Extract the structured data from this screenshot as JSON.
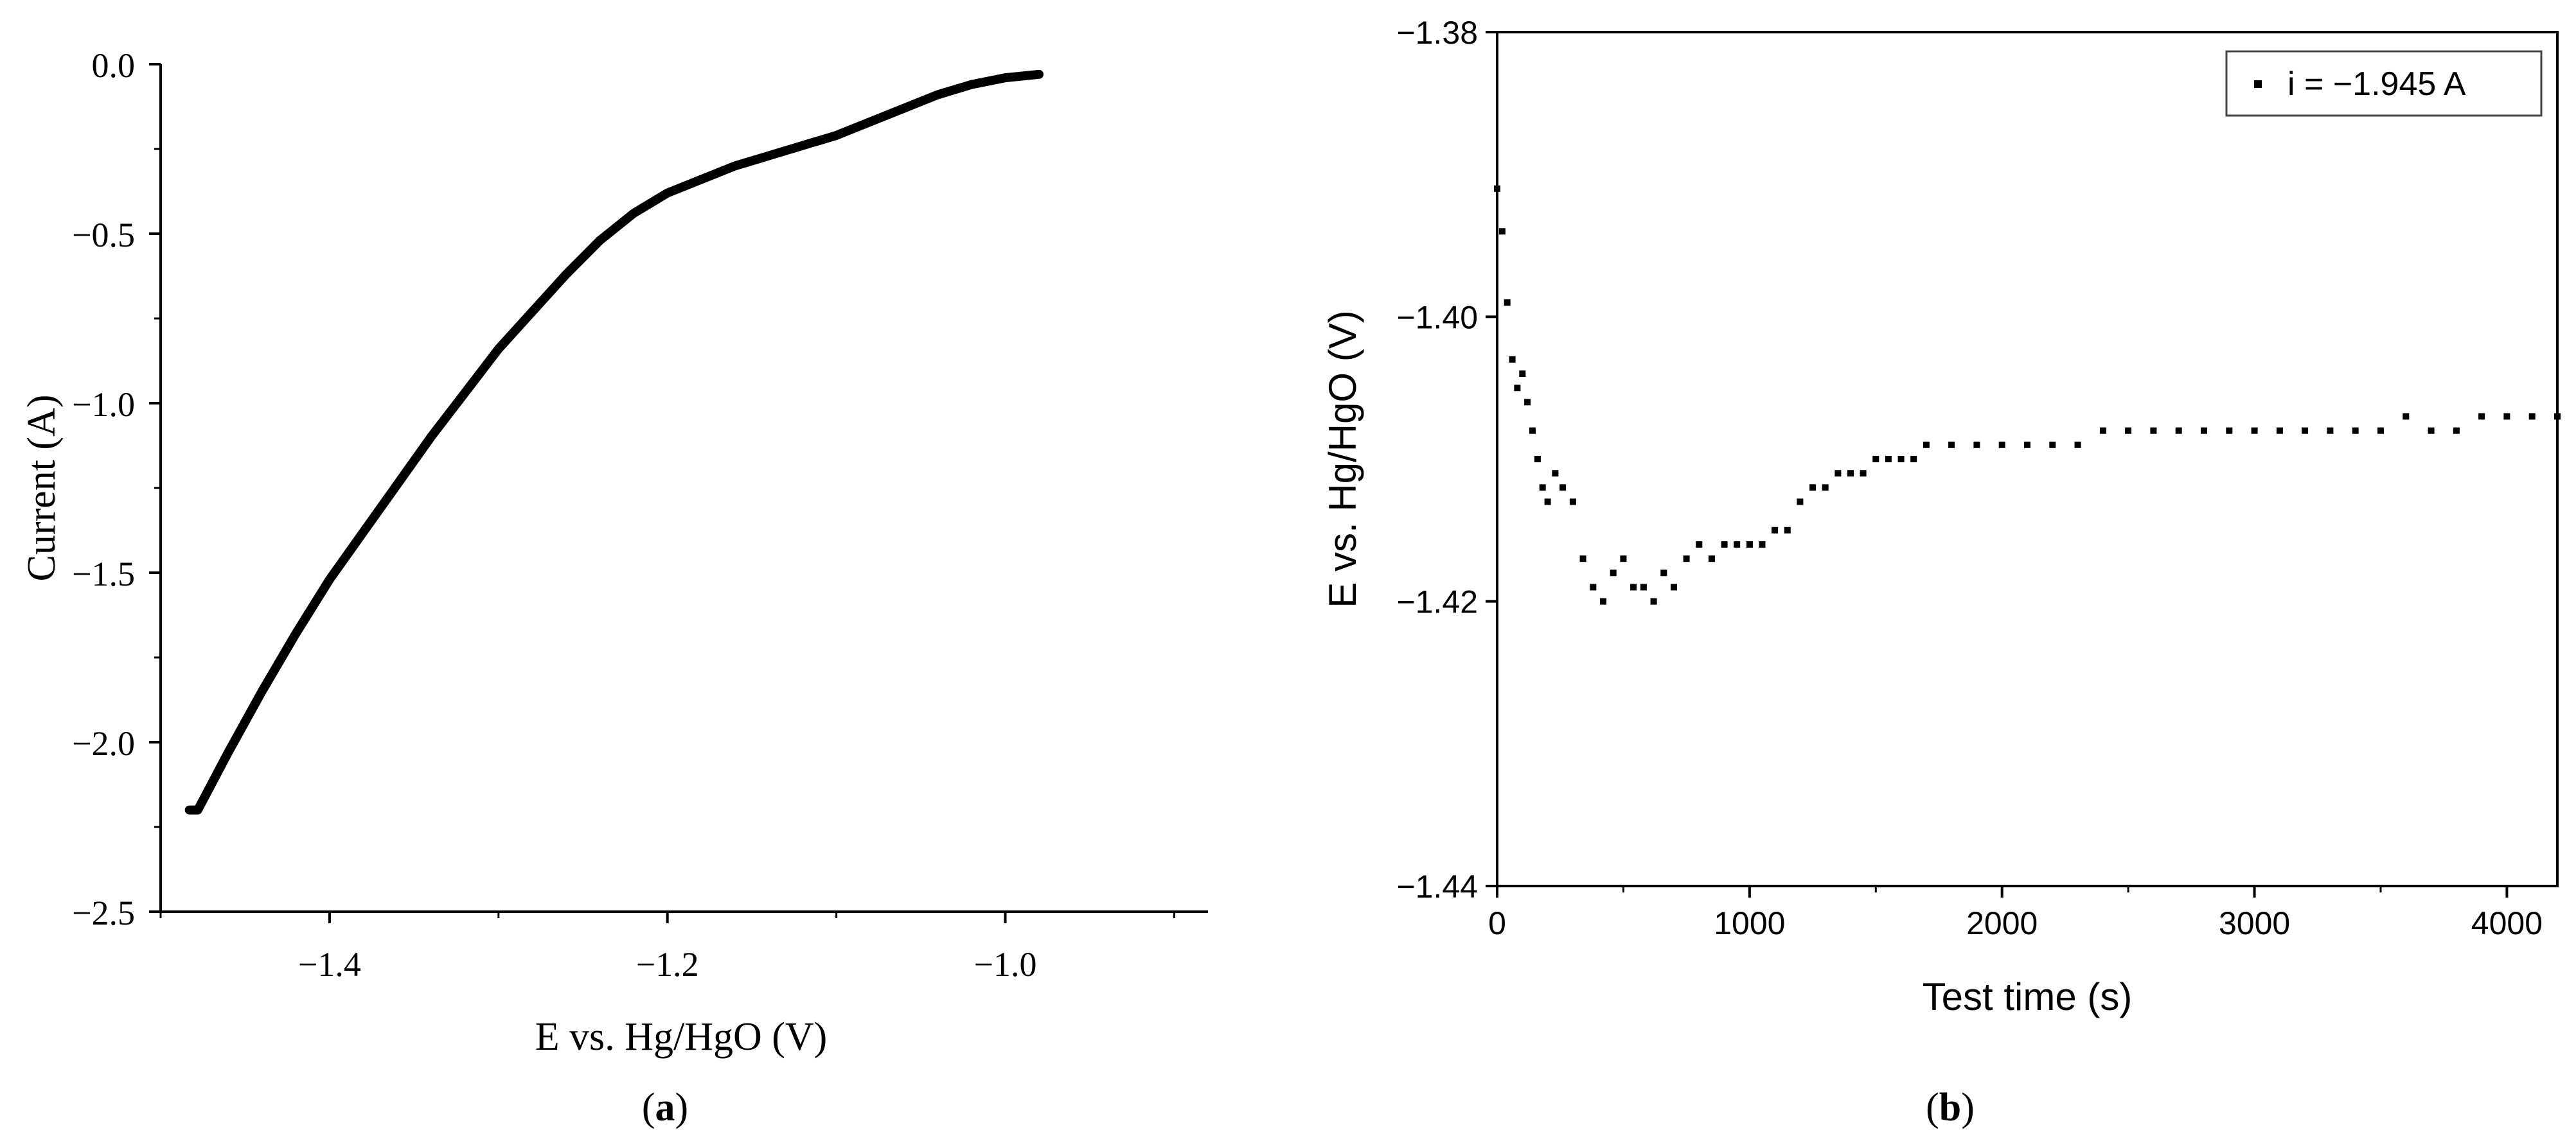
{
  "chart_data": [
    {
      "id": "a",
      "type": "line",
      "panel_label": "a",
      "xlabel": "E vs. Hg/HgO (V)",
      "ylabel": "Current (A)",
      "xlim": [
        -1.5,
        -0.88
      ],
      "ylim": [
        -2.5,
        0.0
      ],
      "xticks": [
        -1.4,
        -1.2,
        -1.0
      ],
      "xtick_labels": [
        "−1.4",
        "−1.2",
        "−1.0"
      ],
      "yticks": [
        0.0,
        -0.5,
        -1.0,
        -1.5,
        -2.0,
        -2.5
      ],
      "ytick_labels": [
        "0.0",
        "−0.5",
        "−1.0",
        "−1.5",
        "−2.0",
        "−2.5"
      ],
      "grid": false,
      "series": [
        {
          "color": "#000000",
          "x": [
            -1.483,
            -1.478,
            -1.46,
            -1.44,
            -1.42,
            -1.4,
            -1.38,
            -1.36,
            -1.34,
            -1.32,
            -1.3,
            -1.28,
            -1.26,
            -1.24,
            -1.22,
            -1.2,
            -1.18,
            -1.16,
            -1.14,
            -1.12,
            -1.1,
            -1.08,
            -1.06,
            -1.04,
            -1.02,
            -1.0,
            -0.98
          ],
          "y": [
            -2.2,
            -2.2,
            -2.03,
            -1.85,
            -1.68,
            -1.52,
            -1.38,
            -1.24,
            -1.1,
            -0.97,
            -0.84,
            -0.73,
            -0.62,
            -0.52,
            -0.44,
            -0.38,
            -0.34,
            -0.3,
            -0.27,
            -0.24,
            -0.21,
            -0.17,
            -0.13,
            -0.09,
            -0.06,
            -0.04,
            -0.03
          ]
        }
      ]
    },
    {
      "id": "b",
      "type": "scatter",
      "panel_label": "b",
      "xlabel": "Test time (s)",
      "ylabel": "E vs. Hg/HgO (V)",
      "xlim": [
        0,
        4200
      ],
      "ylim": [
        -1.44,
        -1.38
      ],
      "xticks": [
        0,
        1000,
        2000,
        3000,
        4000
      ],
      "xtick_labels": [
        "0",
        "1000",
        "2000",
        "3000",
        "4000"
      ],
      "yticks": [
        -1.38,
        -1.4,
        -1.42,
        -1.44
      ],
      "ytick_labels": [
        "−1.38",
        "−1.40",
        "−1.42",
        "−1.44"
      ],
      "grid": false,
      "legend": {
        "position": "top-right",
        "entries": [
          "i = −1.945 A"
        ]
      },
      "series": [
        {
          "name": "i = −1.945 A",
          "color": "#000000",
          "x": [
            0,
            20,
            40,
            60,
            80,
            100,
            120,
            140,
            160,
            180,
            200,
            230,
            260,
            300,
            340,
            380,
            420,
            460,
            500,
            540,
            580,
            620,
            660,
            700,
            750,
            800,
            850,
            900,
            950,
            1000,
            1050,
            1100,
            1150,
            1200,
            1250,
            1300,
            1350,
            1400,
            1450,
            1500,
            1550,
            1600,
            1650,
            1700,
            1800,
            1900,
            2000,
            2100,
            2200,
            2300,
            2400,
            2500,
            2600,
            2700,
            2800,
            2900,
            3000,
            3100,
            3200,
            3300,
            3400,
            3500,
            3600,
            3700,
            3800,
            3900,
            4000,
            4100,
            4200
          ],
          "y": [
            -1.391,
            -1.394,
            -1.399,
            -1.403,
            -1.405,
            -1.404,
            -1.406,
            -1.408,
            -1.41,
            -1.412,
            -1.413,
            -1.411,
            -1.412,
            -1.413,
            -1.417,
            -1.419,
            -1.42,
            -1.418,
            -1.417,
            -1.419,
            -1.419,
            -1.42,
            -1.418,
            -1.419,
            -1.417,
            -1.416,
            -1.417,
            -1.416,
            -1.416,
            -1.416,
            -1.416,
            -1.415,
            -1.415,
            -1.413,
            -1.412,
            -1.412,
            -1.411,
            -1.411,
            -1.411,
            -1.41,
            -1.41,
            -1.41,
            -1.41,
            -1.409,
            -1.409,
            -1.409,
            -1.409,
            -1.409,
            -1.409,
            -1.409,
            -1.408,
            -1.408,
            -1.408,
            -1.408,
            -1.408,
            -1.408,
            -1.408,
            -1.408,
            -1.408,
            -1.408,
            -1.408,
            -1.408,
            -1.407,
            -1.408,
            -1.408,
            -1.407,
            -1.407,
            -1.407,
            -1.407
          ]
        }
      ]
    }
  ]
}
